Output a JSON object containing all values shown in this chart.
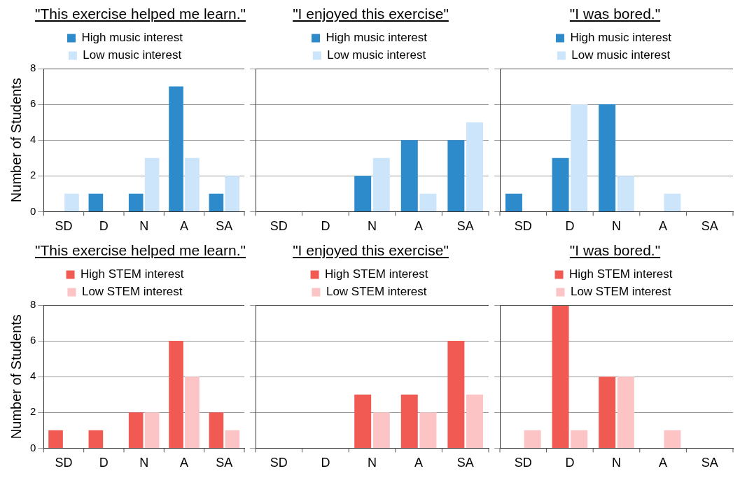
{
  "chart_data": [
    {
      "type": "bar",
      "title": "\"This exercise helped me learn.\"",
      "ylabel": "Number of Students",
      "categories": [
        "SD",
        "D",
        "N",
        "A",
        "SA"
      ],
      "series": [
        {
          "name": "High music interest",
          "color": "#2e8bcb",
          "values": [
            0,
            1,
            1,
            7,
            1
          ]
        },
        {
          "name": "Low music interest",
          "color": "#cce5fb",
          "values": [
            1,
            0,
            3,
            3,
            2
          ]
        }
      ],
      "ylim": [
        0,
        8
      ],
      "yticks": [
        0,
        2,
        4,
        6,
        8
      ],
      "grid": "y",
      "legend": "top"
    },
    {
      "type": "bar",
      "title": "\"I enjoyed this exercise\"",
      "categories": [
        "SD",
        "D",
        "N",
        "A",
        "SA"
      ],
      "series": [
        {
          "name": "High music interest",
          "color": "#2e8bcb",
          "values": [
            0,
            0,
            2,
            4,
            4
          ]
        },
        {
          "name": "Low music interest",
          "color": "#cce5fb",
          "values": [
            0,
            0,
            3,
            1,
            5
          ]
        }
      ],
      "ylim": [
        0,
        8
      ],
      "yticks": [
        0,
        2,
        4,
        6,
        8
      ],
      "grid": "y",
      "legend": "top",
      "tick_labels": "x"
    },
    {
      "type": "bar",
      "title": "\"I was bored.\"",
      "categories": [
        "SD",
        "D",
        "N",
        "A",
        "SA"
      ],
      "series": [
        {
          "name": "High music interest",
          "color": "#2e8bcb",
          "values": [
            1,
            3,
            6,
            0,
            0
          ]
        },
        {
          "name": "Low music interest",
          "color": "#cce5fb",
          "values": [
            0,
            6,
            2,
            1,
            0
          ]
        }
      ],
      "ylim": [
        0,
        8
      ],
      "yticks": [
        0,
        2,
        4,
        6,
        8
      ],
      "grid": "y",
      "legend": "top",
      "tick_labels": "x"
    },
    {
      "type": "bar",
      "title": "\"This exercise helped me learn.\"",
      "ylabel": "Number of Students",
      "categories": [
        "SD",
        "D",
        "N",
        "A",
        "SA"
      ],
      "series": [
        {
          "name": "High STEM interest",
          "color": "#f05a52",
          "values": [
            1,
            1,
            2,
            6,
            2
          ]
        },
        {
          "name": "Low STEM interest",
          "color": "#fcc4c4",
          "values": [
            0,
            0,
            2,
            4,
            1
          ]
        }
      ],
      "ylim": [
        0,
        8
      ],
      "yticks": [
        0,
        2,
        4,
        6,
        8
      ],
      "grid": "y",
      "legend": "top"
    },
    {
      "type": "bar",
      "title": "\"I enjoyed this exercise\"",
      "categories": [
        "SD",
        "D",
        "N",
        "A",
        "SA"
      ],
      "series": [
        {
          "name": "High STEM interest",
          "color": "#f05a52",
          "values": [
            0,
            0,
            3,
            3,
            6
          ]
        },
        {
          "name": "Low STEM interest",
          "color": "#fcc4c4",
          "values": [
            0,
            0,
            2,
            2,
            3
          ]
        }
      ],
      "ylim": [
        0,
        8
      ],
      "yticks": [
        0,
        2,
        4,
        6,
        8
      ],
      "grid": "y",
      "legend": "top",
      "tick_labels": "x"
    },
    {
      "type": "bar",
      "title": "\"I was bored.\"",
      "categories": [
        "SD",
        "D",
        "N",
        "A",
        "SA"
      ],
      "series": [
        {
          "name": "High STEM interest",
          "color": "#f05a52",
          "values": [
            0,
            8,
            4,
            0,
            0
          ]
        },
        {
          "name": "Low STEM interest",
          "color": "#fcc4c4",
          "values": [
            1,
            1,
            4,
            1,
            0
          ]
        }
      ],
      "ylim": [
        0,
        8
      ],
      "yticks": [
        0,
        2,
        4,
        6,
        8
      ],
      "grid": "y",
      "legend": "top",
      "tick_labels": "x"
    }
  ]
}
